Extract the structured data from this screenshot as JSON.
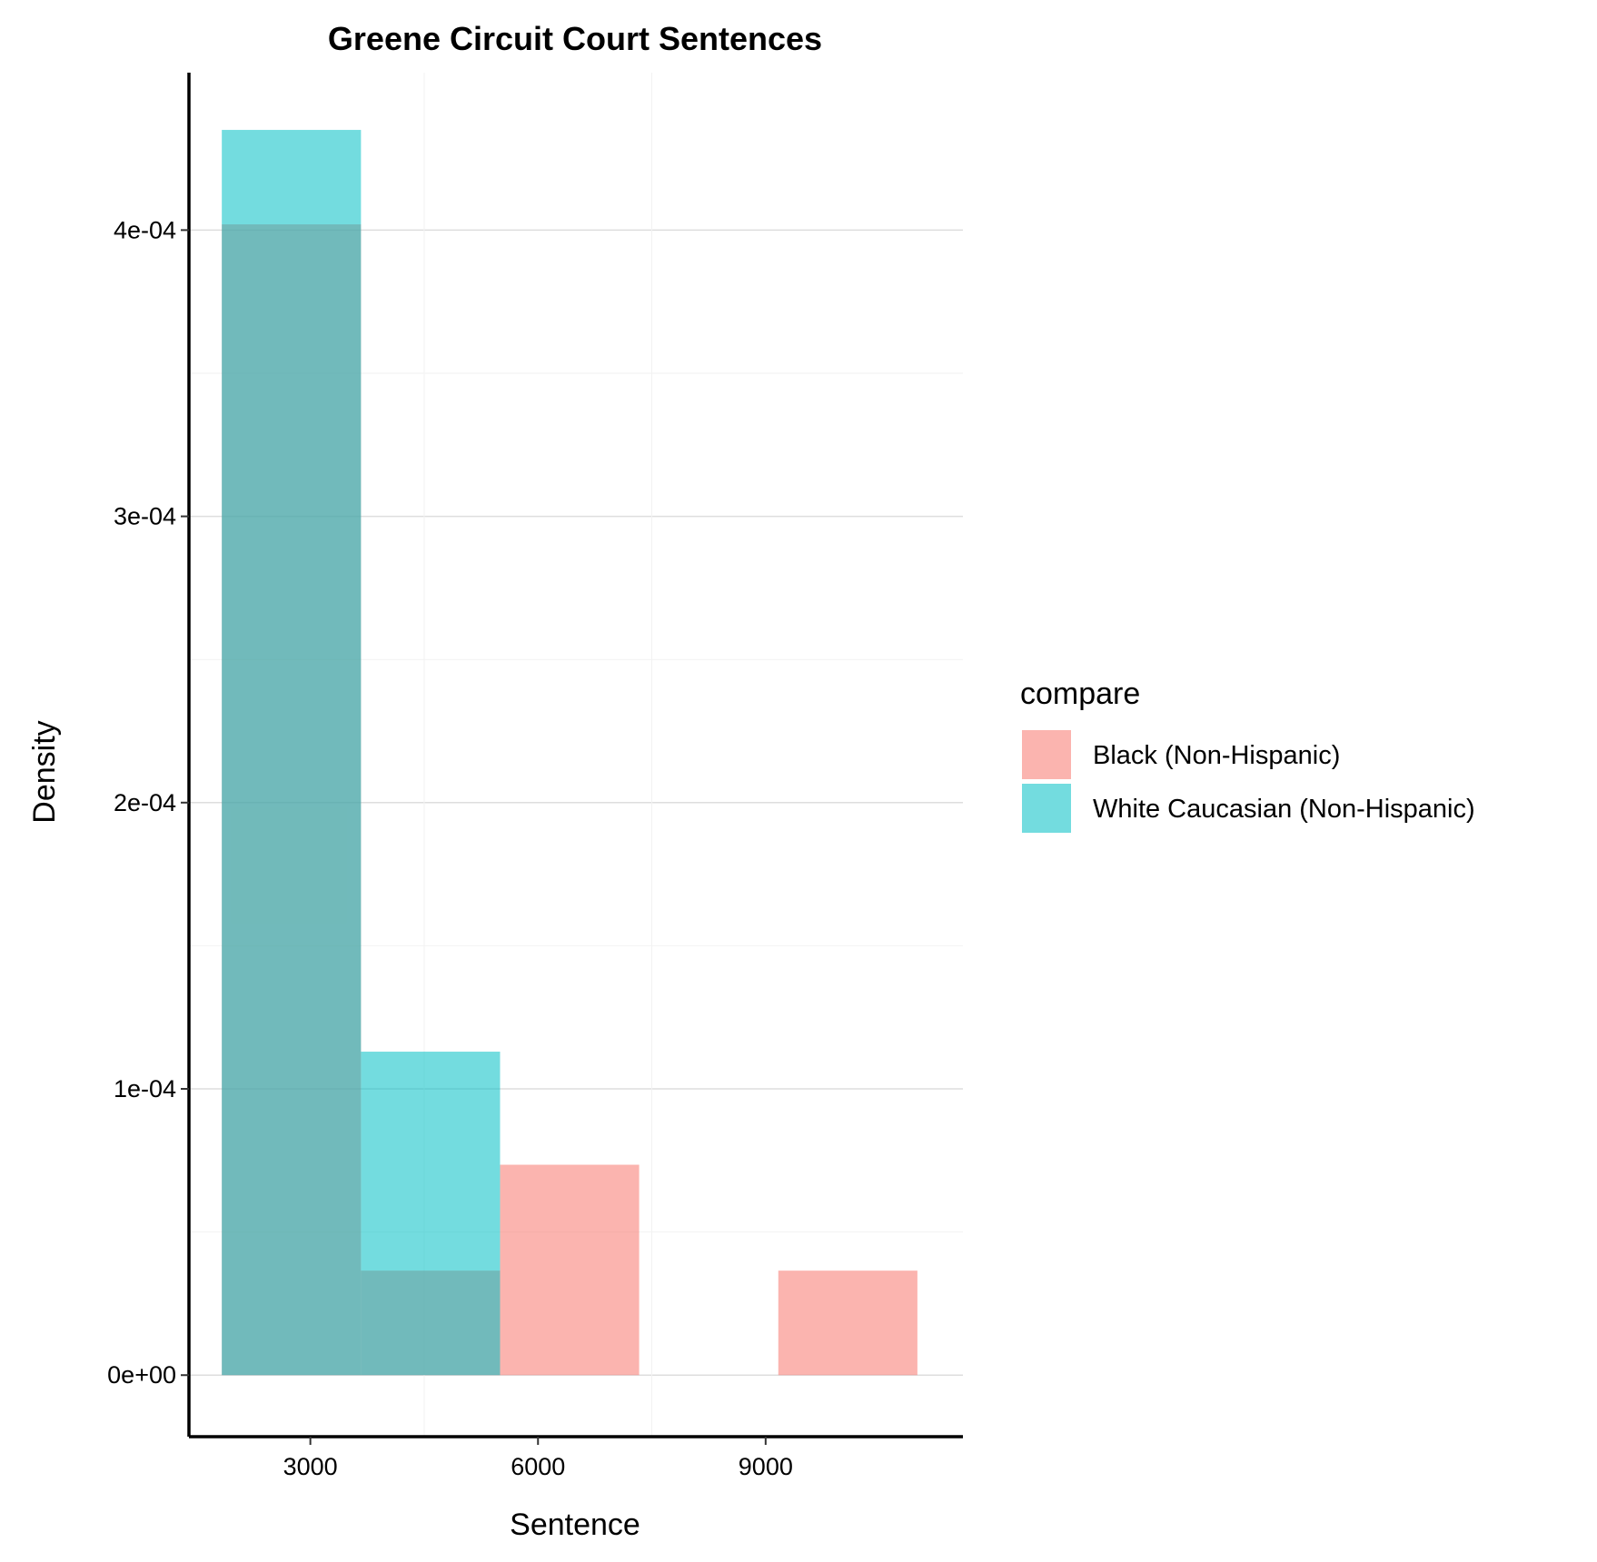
{
  "chart_data": {
    "type": "bar",
    "title": "Greene Circuit Court Sentences",
    "xlabel": "Sentence",
    "ylabel": "Density",
    "xlim": [
      1400,
      11600
    ],
    "ylim": [
      -2.15e-05,
      0.000455
    ],
    "x_ticks": [
      3000,
      6000,
      9000
    ],
    "x_tick_labels": [
      "3000",
      "6000",
      "9000"
    ],
    "y_ticks": [
      0,
      0.0001,
      0.0002,
      0.0003,
      0.0004
    ],
    "y_tick_labels": [
      "0e+00",
      "1e-04",
      "2e-04",
      "3e-04",
      "4e-04"
    ],
    "grid": true,
    "legend": {
      "title": "compare",
      "position": "right"
    },
    "bins": [
      [
        1833,
        3667
      ],
      [
        3667,
        5500
      ],
      [
        5500,
        7333
      ],
      [
        7333,
        9167
      ],
      [
        9167,
        11000
      ]
    ],
    "series": [
      {
        "name": "Black (Non-Hispanic)",
        "color": "#F8766D",
        "values": [
          0.000402,
          3.65e-05,
          7.35e-05,
          0,
          3.65e-05
        ]
      },
      {
        "name": "White Caucasian (Non-Hispanic)",
        "color": "#00BFC4",
        "values": [
          0.000435,
          0.000113,
          0,
          0,
          0
        ]
      }
    ]
  }
}
